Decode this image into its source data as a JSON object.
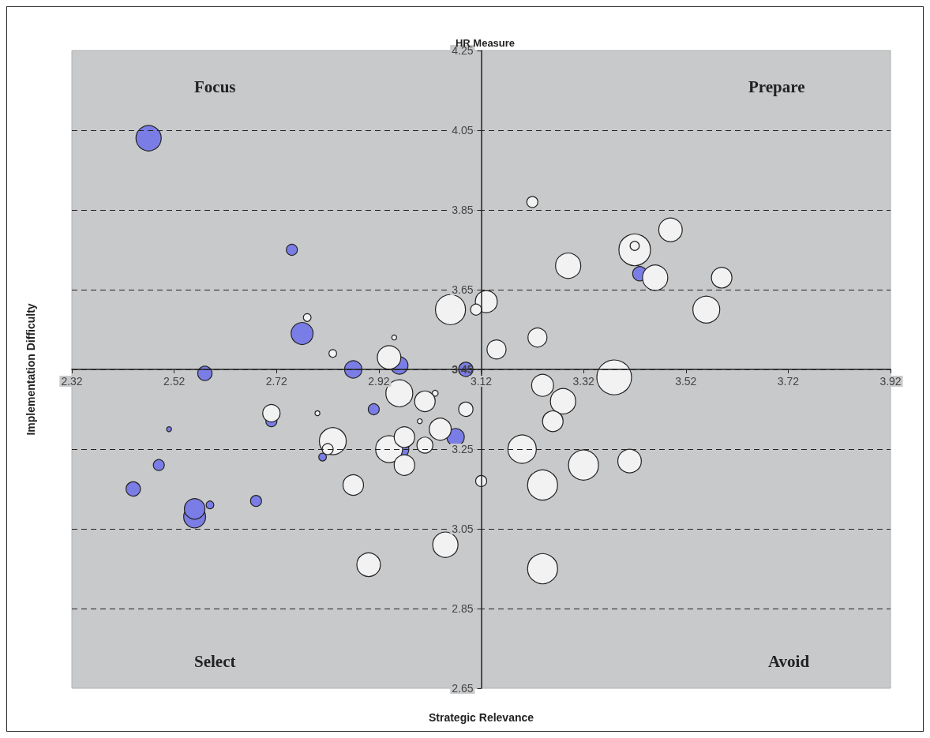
{
  "chart_data": {
    "type": "bubble",
    "title": "HR Measure",
    "xlabel": "Strategic Relevance",
    "ylabel": "Implementation Difficulty",
    "annotations": [
      "Focus",
      "Prepare",
      "Select",
      "Avoid"
    ],
    "xlim": [
      2.32,
      3.92
    ],
    "xticks": [
      2.32,
      2.52,
      2.72,
      2.92,
      3.12,
      3.32,
      3.52,
      3.72,
      3.92
    ],
    "ylim": [
      2.65,
      4.25
    ],
    "yticks": [
      2.65,
      2.85,
      3.05,
      3.25,
      3.45,
      3.65,
      3.85,
      4.05,
      4.25
    ],
    "grid": "y",
    "marker": "circle",
    "series": [
      {
        "color": "#7b7de6",
        "x": [
          2.47,
          2.75,
          2.77,
          2.58,
          2.87,
          2.96,
          3.09,
          2.91,
          2.71,
          2.51,
          2.49,
          2.44,
          2.56,
          2.56,
          2.59,
          2.68,
          2.81,
          2.96,
          3.07,
          3.43
        ],
        "values": [
          4.03,
          3.75,
          3.54,
          3.44,
          3.45,
          3.46,
          3.45,
          3.35,
          3.32,
          3.3,
          3.21,
          3.15,
          3.08,
          3.1,
          3.11,
          3.12,
          3.23,
          3.25,
          3.28,
          3.69
        ],
        "sizes": [
          0.53,
          0.1,
          0.4,
          0.17,
          0.25,
          0.25,
          0.17,
          0.1,
          0.1,
          0.02,
          0.1,
          0.17,
          0.4,
          0.35,
          0.05,
          0.1,
          0.05,
          0.3,
          0.25,
          0.17
        ]
      },
      {
        "color": "#f2f2f2",
        "x": [
          3.22,
          3.49,
          3.42,
          3.42,
          3.29,
          3.46,
          3.59,
          3.56,
          3.06,
          3.13,
          3.11,
          2.78,
          3.15,
          3.23,
          2.83,
          2.95,
          2.94,
          2.96,
          3.03,
          3.01,
          3.09,
          2.71,
          2.8,
          2.83,
          2.82,
          2.94,
          2.97,
          3.0,
          3.01,
          3.04,
          2.97,
          2.87,
          3.05,
          2.9,
          3.12,
          3.2,
          3.24,
          3.28,
          3.26,
          3.38,
          3.32,
          3.41,
          3.24,
          3.24
        ],
        "values": [
          3.87,
          3.8,
          3.75,
          3.76,
          3.71,
          3.68,
          3.68,
          3.6,
          3.6,
          3.62,
          3.6,
          3.58,
          3.5,
          3.53,
          3.49,
          3.53,
          3.48,
          3.39,
          3.39,
          3.37,
          3.35,
          3.34,
          3.34,
          3.27,
          3.25,
          3.25,
          3.28,
          3.32,
          3.26,
          3.3,
          3.21,
          3.16,
          3.01,
          2.96,
          3.17,
          3.25,
          3.41,
          3.37,
          3.32,
          3.43,
          3.21,
          3.22,
          3.16,
          2.95
        ],
        "sizes": [
          0.1,
          0.46,
          0.83,
          0.07,
          0.53,
          0.53,
          0.35,
          0.6,
          0.75,
          0.4,
          0.1,
          0.05,
          0.3,
          0.3,
          0.05,
          0.02,
          0.46,
          0.6,
          0.03,
          0.35,
          0.17,
          0.25,
          0.02,
          0.6,
          0.1,
          0.6,
          0.35,
          0.02,
          0.21,
          0.4,
          0.35,
          0.35,
          0.53,
          0.46,
          0.1,
          0.67,
          0.4,
          0.53,
          0.35,
          1,
          0.75,
          0.46,
          0.75,
          0.75
        ]
      }
    ]
  }
}
